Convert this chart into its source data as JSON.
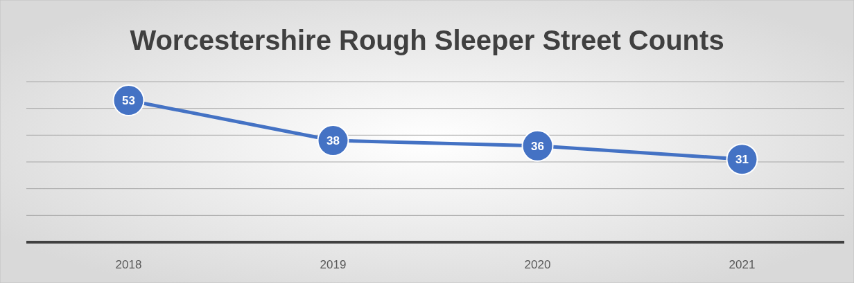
{
  "chart_data": {
    "type": "line",
    "title": "Worcestershire Rough Sleeper Street Counts",
    "categories": [
      "2018",
      "2019",
      "2020",
      "2021"
    ],
    "series": [
      {
        "color": "#4472c4",
        "values": [
          53,
          38,
          36,
          31
        ]
      }
    ],
    "ylim": [
      0,
      60
    ],
    "yticks": [
      {
        "value": 0,
        "label": null
      },
      {
        "value": 10,
        "label": null
      },
      {
        "value": 20,
        "label": null
      },
      {
        "value": 30,
        "label": null
      },
      {
        "value": 40,
        "label": null
      },
      {
        "value": 50,
        "label": null
      },
      {
        "value": 60,
        "label": null
      }
    ],
    "tick_labels": "x",
    "grid": "y",
    "data_labels": true,
    "marker": "circle",
    "line_style": "solid"
  }
}
